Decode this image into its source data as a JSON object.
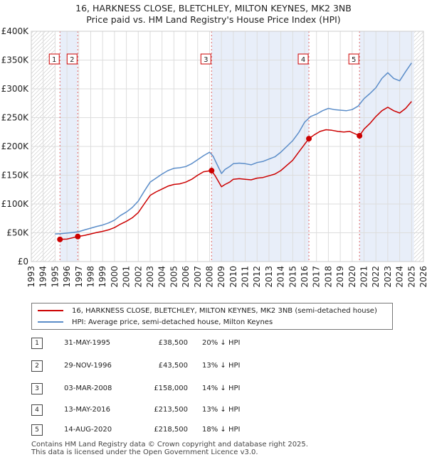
{
  "title_line1": "16, HARKNESS CLOSE, BLETCHLEY, MILTON KEYNES, MK2 3NB",
  "title_line2": "Price paid vs. HM Land Registry's House Price Index (HPI)",
  "legend": {
    "property_label": "16, HARKNESS CLOSE, BLETCHLEY, MILTON KEYNES, MK2 3NB (semi-detached house)",
    "hpi_label": "HPI: Average price, semi-detached house, Milton Keynes"
  },
  "colors": {
    "property": "#cc0000",
    "hpi": "#5b8dc9",
    "shade": "#e8eef9",
    "hatch": "#bbbbbb",
    "vline": "#e06666"
  },
  "transactions": [
    {
      "num": "1",
      "date": "31-MAY-1995",
      "price": "£38,500",
      "hpi_diff": "20% ↓ HPI"
    },
    {
      "num": "2",
      "date": "29-NOV-1996",
      "price": "£43,500",
      "hpi_diff": "13% ↓ HPI"
    },
    {
      "num": "3",
      "date": "03-MAR-2008",
      "price": "£158,000",
      "hpi_diff": "14% ↓ HPI"
    },
    {
      "num": "4",
      "date": "13-MAY-2016",
      "price": "£213,500",
      "hpi_diff": "13% ↓ HPI"
    },
    {
      "num": "5",
      "date": "14-AUG-2020",
      "price": "£218,500",
      "hpi_diff": "18% ↓ HPI"
    }
  ],
  "footer_line1": "Contains HM Land Registry data © Crown copyright and database right 2025.",
  "footer_line2": "This data is licensed under the Open Government Licence v3.0.",
  "chart_data": {
    "type": "line",
    "title": "16, HARKNESS CLOSE, BLETCHLEY, MILTON KEYNES, MK2 3NB - Price paid vs. HM Land Registry's House Price Index (HPI)",
    "xlabel": "",
    "ylabel": "",
    "xlim": [
      1993,
      2026
    ],
    "ylim": [
      0,
      400000
    ],
    "x_ticks": [
      1993,
      1994,
      1995,
      1996,
      1997,
      1998,
      1999,
      2000,
      2001,
      2002,
      2003,
      2004,
      2005,
      2006,
      2007,
      2008,
      2009,
      2010,
      2011,
      2012,
      2013,
      2014,
      2015,
      2016,
      2017,
      2018,
      2019,
      2020,
      2021,
      2022,
      2023,
      2024,
      2025,
      2026
    ],
    "y_ticks": [
      {
        "value": 0,
        "label": "£0"
      },
      {
        "value": 50000,
        "label": "£50K"
      },
      {
        "value": 100000,
        "label": "£100K"
      },
      {
        "value": 150000,
        "label": "£150K"
      },
      {
        "value": 200000,
        "label": "£200K"
      },
      {
        "value": 250000,
        "label": "£250K"
      },
      {
        "value": 300000,
        "label": "£300K"
      },
      {
        "value": 350000,
        "label": "£350K"
      },
      {
        "value": 400000,
        "label": "£400K"
      }
    ],
    "hatched_ranges": [
      [
        1993,
        1995.0
      ],
      [
        2025.2,
        2026
      ]
    ],
    "shaded_ranges": [
      [
        1995.41,
        1996.91
      ],
      [
        2008.17,
        2016.36
      ],
      [
        2020.62,
        2025.2
      ]
    ],
    "series": [
      {
        "name": "HPI: Average price, semi-detached house, Milton Keynes",
        "x": [
          1995.0,
          1995.5,
          1996.0,
          1996.5,
          1997.0,
          1997.5,
          1998.0,
          1998.5,
          1999.0,
          1999.5,
          2000.0,
          2000.5,
          2001.0,
          2001.5,
          2002.0,
          2002.5,
          2003.0,
          2003.5,
          2004.0,
          2004.5,
          2005.0,
          2005.5,
          2006.0,
          2006.5,
          2007.0,
          2007.5,
          2008.0,
          2008.3,
          2008.6,
          2009.0,
          2009.3,
          2009.7,
          2010.0,
          2010.5,
          2011.0,
          2011.5,
          2012.0,
          2012.5,
          2013.0,
          2013.5,
          2014.0,
          2014.5,
          2015.0,
          2015.5,
          2016.0,
          2016.5,
          2017.0,
          2017.5,
          2018.0,
          2018.5,
          2019.0,
          2019.5,
          2020.0,
          2020.5,
          2021.0,
          2021.5,
          2022.0,
          2022.5,
          2023.0,
          2023.5,
          2024.0,
          2024.5,
          2025.0
        ],
        "values": [
          48000,
          48500,
          49500,
          50500,
          52000,
          55000,
          58000,
          61000,
          63500,
          67000,
          72000,
          80000,
          86000,
          94000,
          105000,
          122000,
          138000,
          145000,
          152000,
          158000,
          162000,
          163000,
          165000,
          170000,
          177000,
          184000,
          190000,
          183000,
          170000,
          153000,
          160000,
          165000,
          170000,
          171000,
          170000,
          168000,
          172000,
          174000,
          178000,
          182000,
          190000,
          200000,
          210000,
          224000,
          242000,
          252000,
          256000,
          262000,
          266000,
          264000,
          263000,
          262000,
          264000,
          270000,
          283000,
          292000,
          302000,
          318000,
          328000,
          318000,
          314000,
          330000,
          345000
        ]
      },
      {
        "name": "16, HARKNESS CLOSE, BLETCHLEY, MILTON KEYNES, MK2 3NB (semi-detached house)",
        "x": [
          1995.41,
          1996.0,
          1996.91,
          1997.5,
          1998.0,
          1998.5,
          1999.0,
          1999.5,
          2000.0,
          2000.5,
          2001.0,
          2001.5,
          2002.0,
          2002.5,
          2003.0,
          2003.5,
          2004.0,
          2004.5,
          2005.0,
          2005.5,
          2006.0,
          2006.5,
          2007.0,
          2007.5,
          2008.17,
          2008.5,
          2009.0,
          2009.3,
          2009.7,
          2010.0,
          2010.5,
          2011.0,
          2011.5,
          2012.0,
          2012.5,
          2013.0,
          2013.5,
          2014.0,
          2014.5,
          2015.0,
          2015.5,
          2016.36,
          2016.8,
          2017.3,
          2017.8,
          2018.3,
          2018.8,
          2019.3,
          2019.8,
          2020.62,
          2021.0,
          2021.5,
          2022.0,
          2022.5,
          2023.0,
          2023.5,
          2024.0,
          2024.5,
          2025.0
        ],
        "values": [
          38500,
          39000,
          43500,
          45500,
          48000,
          50500,
          52500,
          55000,
          59000,
          65000,
          70000,
          76000,
          85000,
          100000,
          115000,
          121000,
          126000,
          131000,
          134000,
          135000,
          138000,
          143000,
          150000,
          156000,
          158000,
          148000,
          130000,
          134000,
          138000,
          143000,
          144000,
          143000,
          142000,
          145000,
          146000,
          149000,
          152000,
          158000,
          167000,
          176000,
          190000,
          213500,
          220000,
          226000,
          229000,
          228000,
          226000,
          225000,
          226000,
          218500,
          230000,
          240000,
          252000,
          262000,
          268000,
          262000,
          258000,
          266000,
          278000
        ]
      }
    ],
    "sale_points": [
      {
        "num": "1",
        "x": 1995.41,
        "value": 38500
      },
      {
        "num": "2",
        "x": 1996.91,
        "value": 43500
      },
      {
        "num": "3",
        "x": 2008.17,
        "value": 158000
      },
      {
        "num": "4",
        "x": 2016.36,
        "value": 213500
      },
      {
        "num": "5",
        "x": 2020.62,
        "value": 218500
      }
    ]
  }
}
